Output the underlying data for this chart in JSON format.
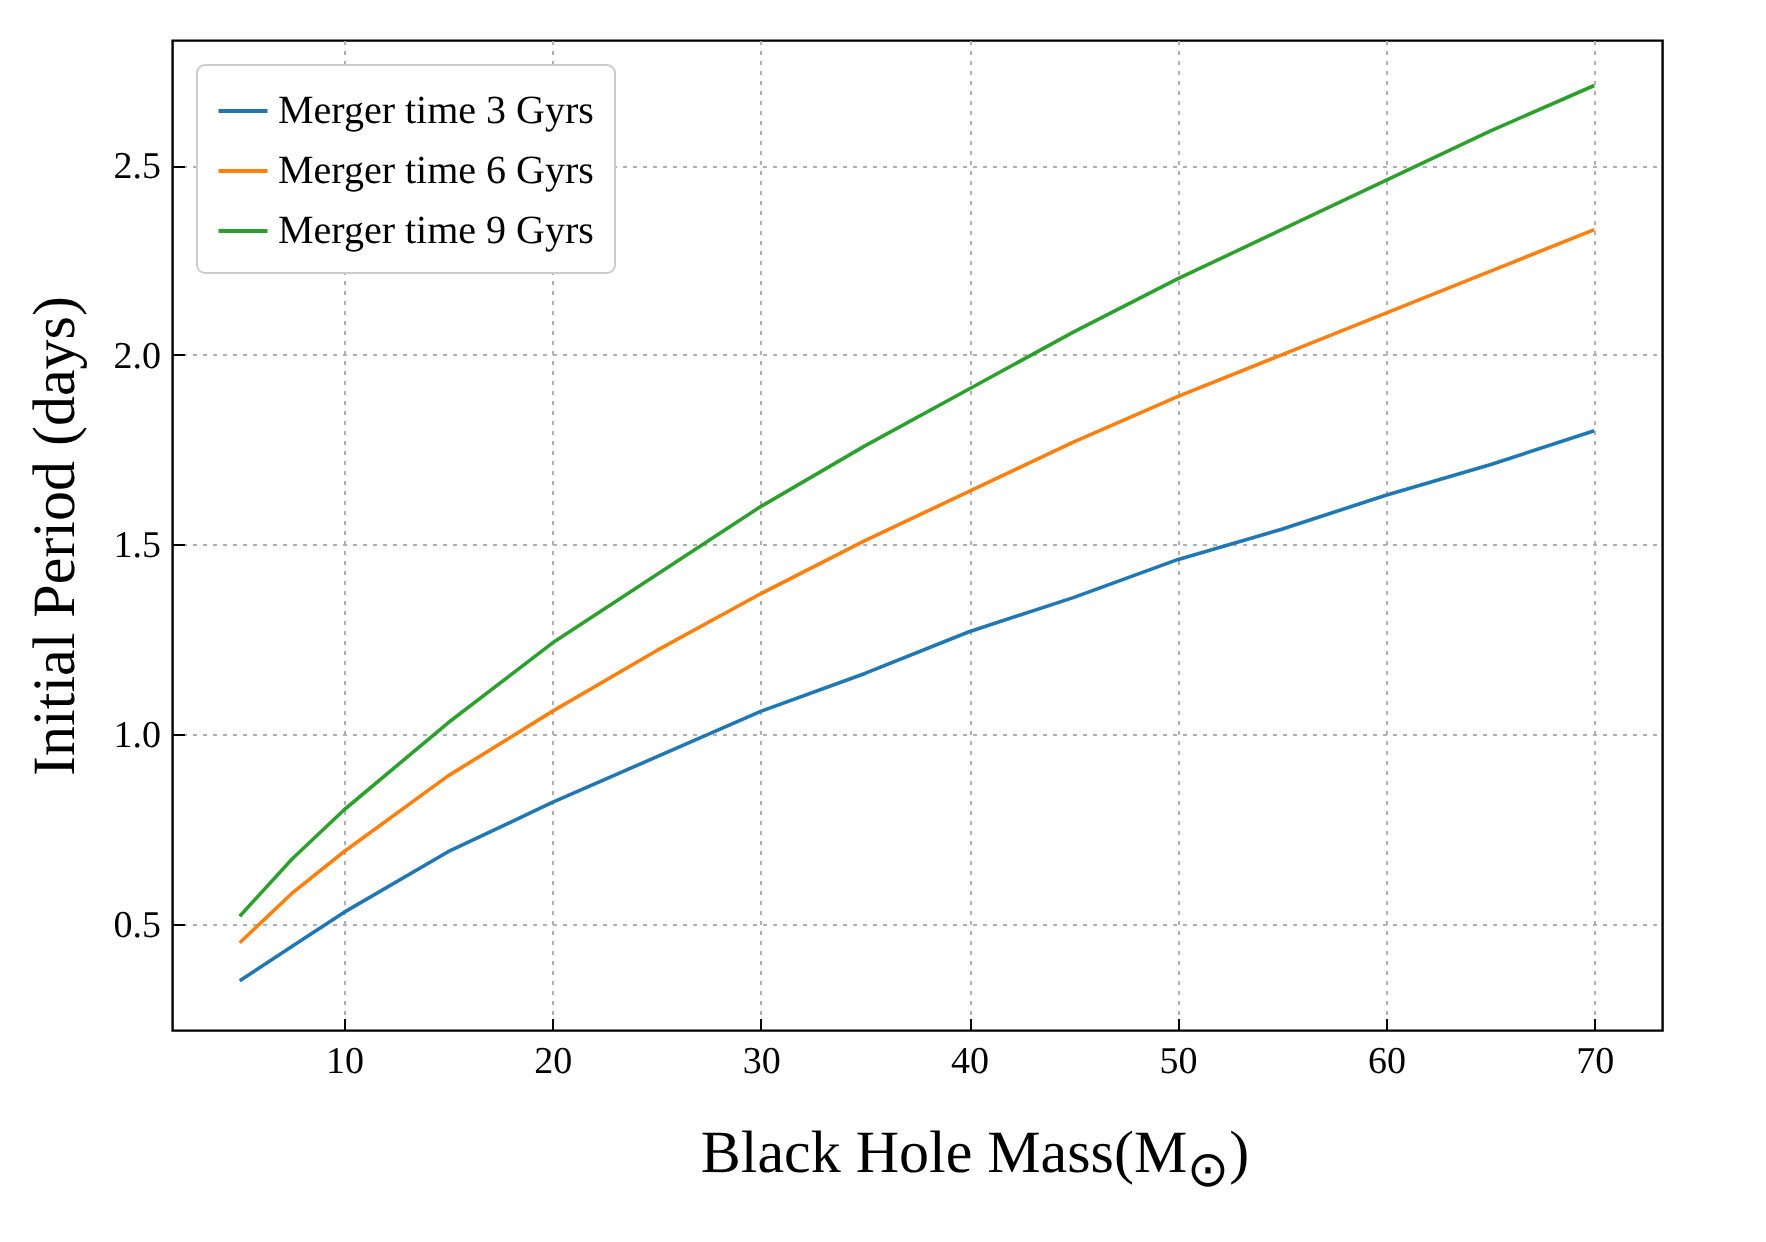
{
  "chart_data": {
    "type": "line",
    "xlabel": "Black Hole Mass(M$_{⊙}$)",
    "ylabel": "Initial Period (days)",
    "x": [
      5,
      7.5,
      10,
      15,
      20,
      25,
      30,
      35,
      40,
      45,
      50,
      55,
      60,
      65,
      70
    ],
    "series": [
      {
        "name": "Merger time 3 Gyrs",
        "color": "#1f77b4",
        "values": [
          0.35,
          0.44,
          0.53,
          0.69,
          0.82,
          0.94,
          1.06,
          1.16,
          1.27,
          1.36,
          1.46,
          1.54,
          1.63,
          1.71,
          1.8
        ]
      },
      {
        "name": "Merger time 6 Gyrs",
        "color": "#ff7f0e",
        "values": [
          0.45,
          0.58,
          0.69,
          0.89,
          1.06,
          1.22,
          1.37,
          1.51,
          1.64,
          1.77,
          1.89,
          2.0,
          2.11,
          2.22,
          2.33
        ]
      },
      {
        "name": "Merger time 9 Gyrs",
        "color": "#2ca02c",
        "values": [
          0.52,
          0.67,
          0.8,
          1.03,
          1.24,
          1.42,
          1.6,
          1.76,
          1.91,
          2.06,
          2.2,
          2.33,
          2.46,
          2.59,
          2.71
        ]
      }
    ],
    "xlim": [
      1.75,
      73.25
    ],
    "ylim": [
      0.22,
      2.83
    ],
    "xticks": [
      10,
      20,
      30,
      40,
      50,
      60,
      70
    ],
    "yticks": [
      {
        "value": 0.5,
        "label": "0.5"
      },
      {
        "value": 1,
        "label": "1.0"
      },
      {
        "value": 1.5,
        "label": "1.5"
      },
      {
        "value": 2,
        "label": "2.0"
      },
      {
        "value": 2.5,
        "label": "2.5"
      }
    ],
    "grid": true,
    "legend": "top left",
    "marker": "none",
    "line_style": "solid"
  }
}
